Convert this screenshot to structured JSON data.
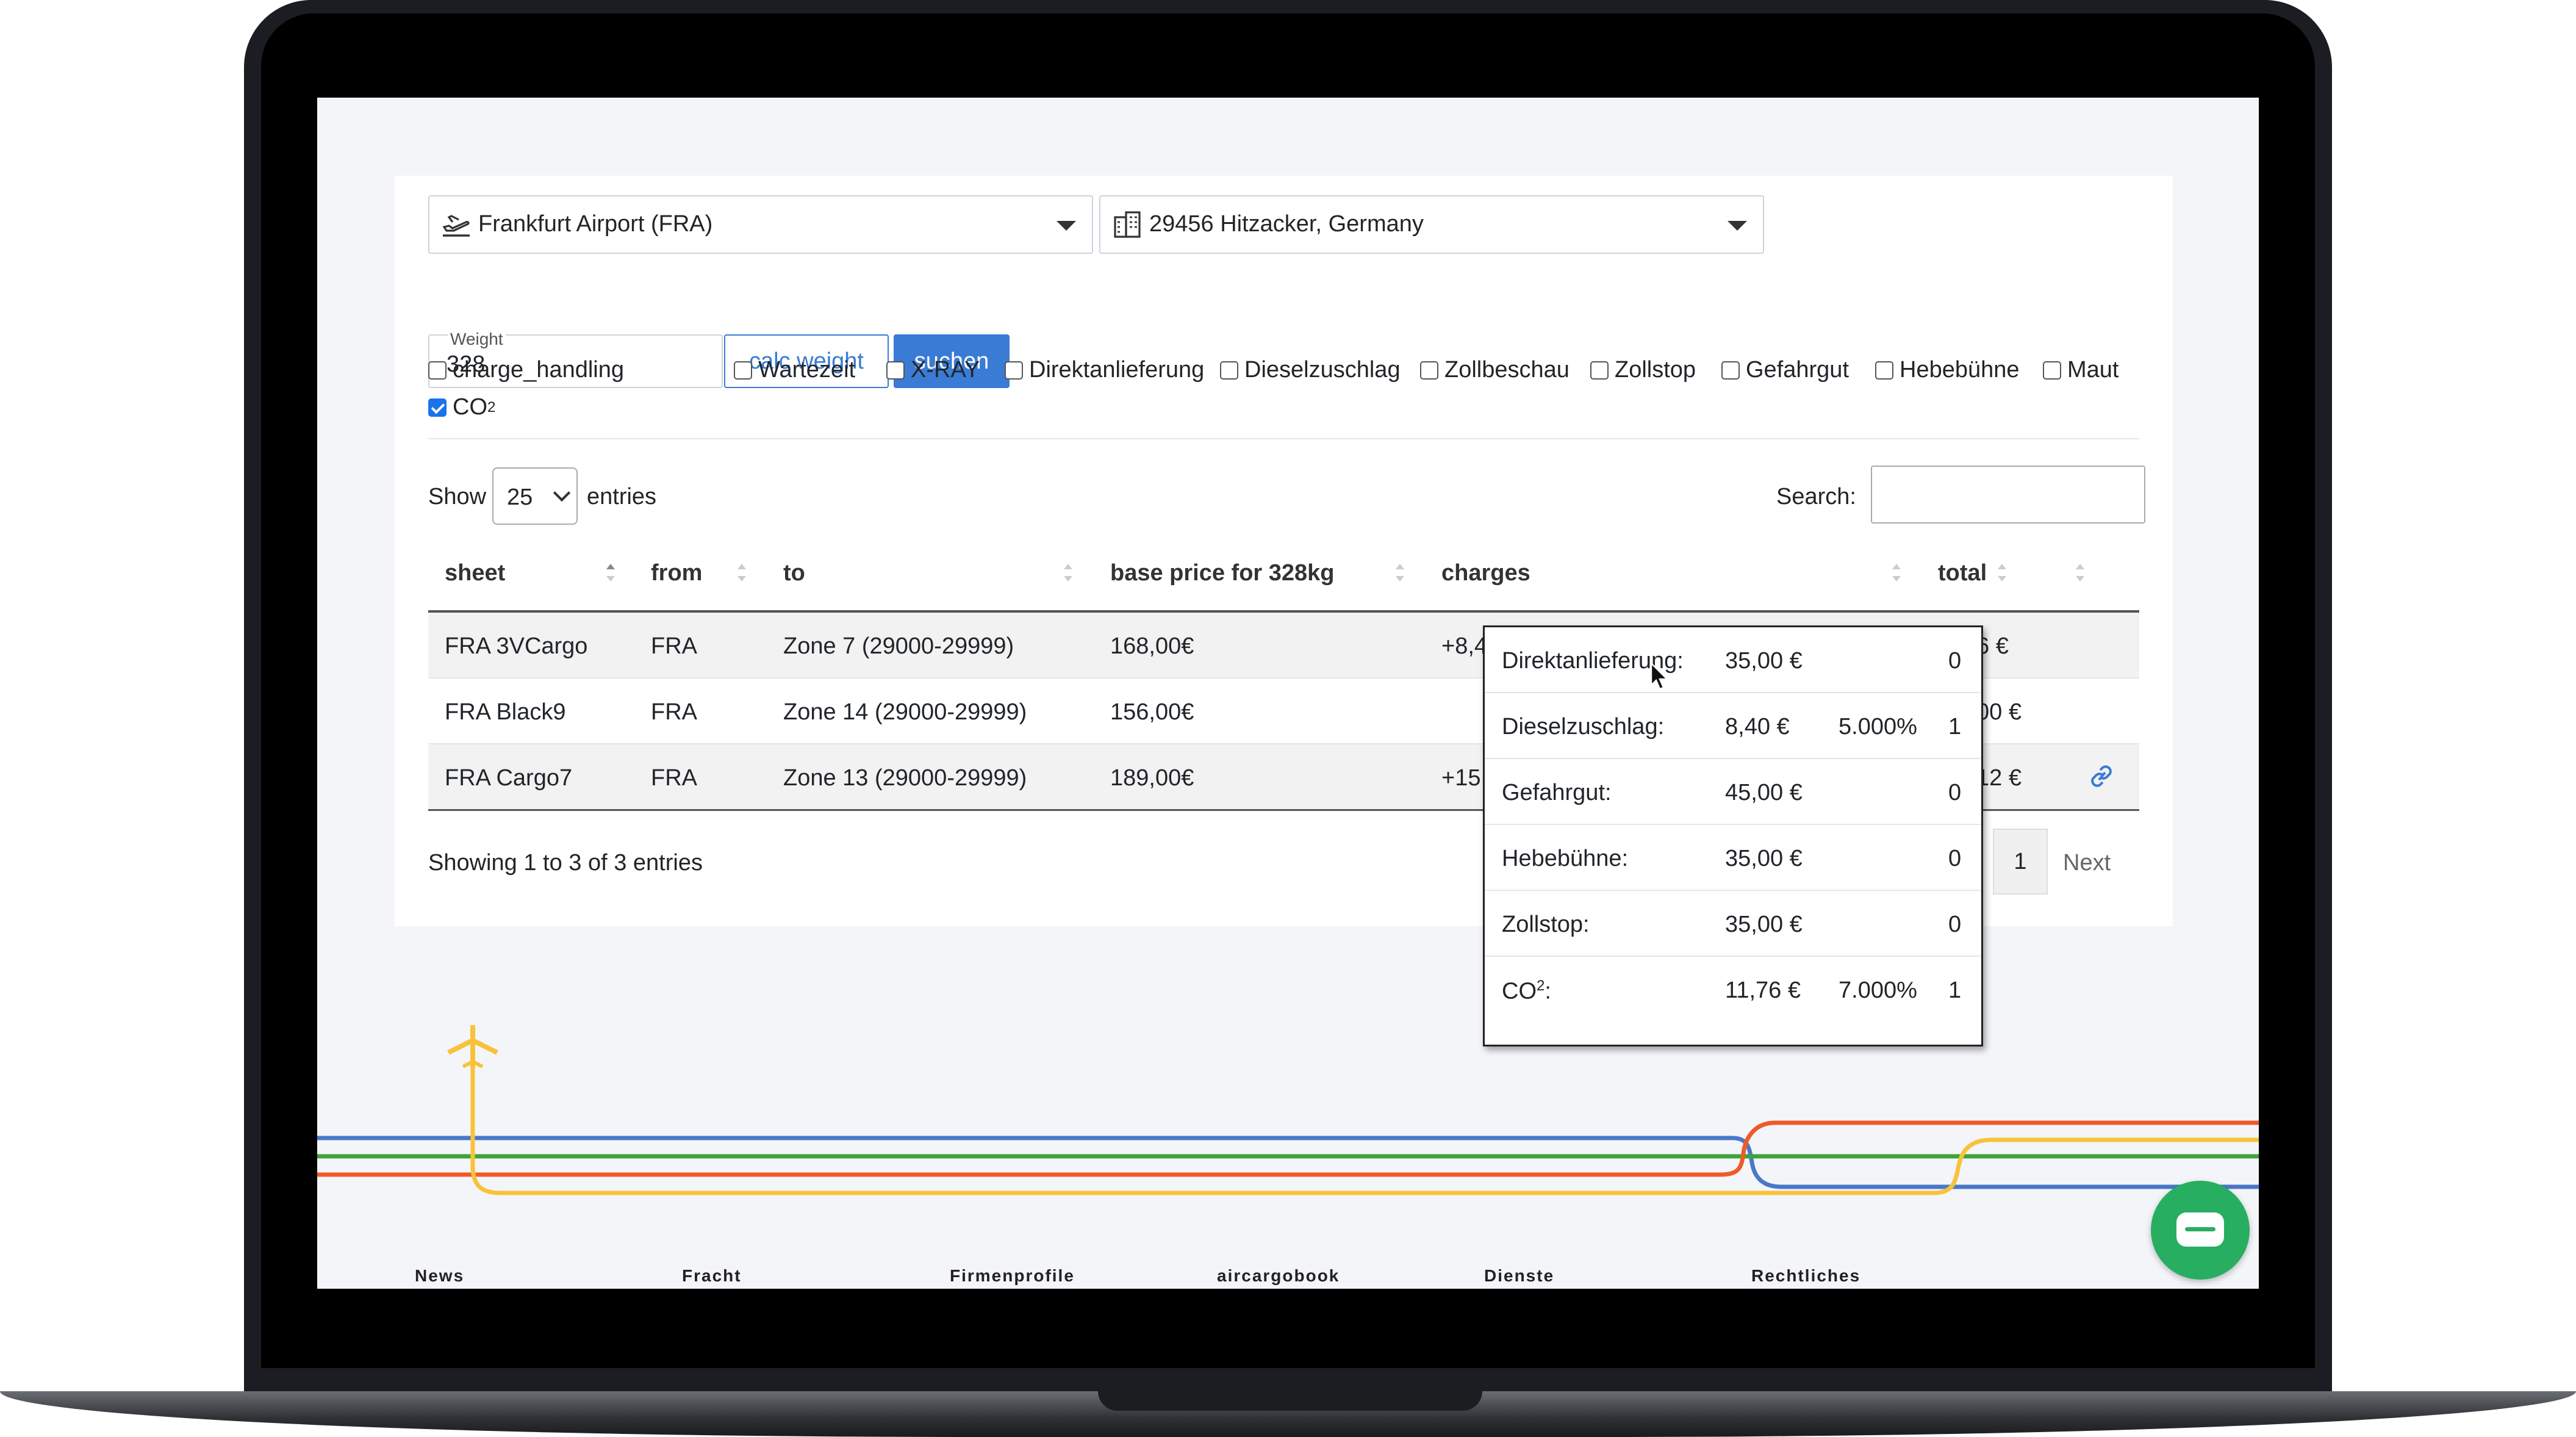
{
  "origin_select": {
    "value": "Frankfurt Airport (FRA)",
    "icon": "airplane-departure-icon"
  },
  "destination_select": {
    "value": "29456 Hitzacker, Germany",
    "icon": "city-icon"
  },
  "weight": {
    "label": "Weight",
    "value": "328"
  },
  "buttons": {
    "calc_weight": "calc weight",
    "search": "suchen"
  },
  "checkboxes": [
    {
      "label": "charge_handling",
      "checked": false
    },
    {
      "label": "Wartezeit",
      "checked": false
    },
    {
      "label": "X-RAY",
      "checked": false
    },
    {
      "label": "Direktanlieferung",
      "checked": false
    },
    {
      "label": "Dieselzuschlag",
      "checked": false
    },
    {
      "label": "Zollbeschau",
      "checked": false
    },
    {
      "label": "Zollstop",
      "checked": false
    },
    {
      "label": "Gefahrgut",
      "checked": false
    },
    {
      "label": "Hebebühne",
      "checked": false
    },
    {
      "label": "Maut",
      "checked": false
    },
    {
      "label": "CO",
      "superscript": "2",
      "checked": true
    }
  ],
  "table_controls": {
    "show_label": "Show",
    "page_size": "25",
    "entries_label": "entries",
    "search_label": "Search:"
  },
  "table": {
    "headers": [
      "sheet",
      "from",
      "to",
      "base price for 328kg",
      "charges",
      "total"
    ],
    "rows": [
      {
        "sheet": "FRA 3VCargo",
        "from": "FRA",
        "to": "Zone 7 (29000-29999)",
        "base_price": "168,00€",
        "charges": "+8,4",
        "total": "6 €"
      },
      {
        "sheet": "FRA Black9",
        "from": "FRA",
        "to": "Zone 14 (29000-29999)",
        "base_price": "156,00€",
        "charges": "",
        "total": "00 €"
      },
      {
        "sheet": "FRA Cargo7",
        "from": "FRA",
        "to": "Zone 13 (29000-29999)",
        "base_price": "189,00€",
        "charges": "+15,",
        "total": "12 €"
      }
    ]
  },
  "pagination": {
    "info": "Showing 1 to 3 of 3 entries",
    "current_page": "1",
    "next": "Next"
  },
  "tooltip": {
    "rows": [
      {
        "name": "Direktanlieferung:",
        "amount": "35,00 €",
        "percent": "",
        "count": "0"
      },
      {
        "name": "Dieselzuschlag:",
        "amount": "8,40 €",
        "percent": "5.000%",
        "count": "1"
      },
      {
        "name": "Gefahrgut:",
        "amount": "45,00 €",
        "percent": "",
        "count": "0"
      },
      {
        "name": "Hebebühne:",
        "amount": "35,00 €",
        "percent": "",
        "count": "0"
      },
      {
        "name": "Zollstop:",
        "amount": "35,00 €",
        "percent": "",
        "count": "0"
      },
      {
        "name": "CO",
        "superscript": "2",
        "suffix": ":",
        "amount": "11,76 €",
        "percent": "7.000%",
        "count": "1"
      }
    ]
  },
  "footer": {
    "links": [
      "News",
      "Fracht",
      "Firmenprofile",
      "aircargobook",
      "Dienste",
      "Rechtliches"
    ]
  },
  "colors": {
    "primary": "#3a7bd5",
    "chat": "#27ae60",
    "line_blue": "#4a78c8",
    "line_green": "#3aa53a",
    "line_red": "#f05a28",
    "line_yellow": "#f8c23a"
  }
}
